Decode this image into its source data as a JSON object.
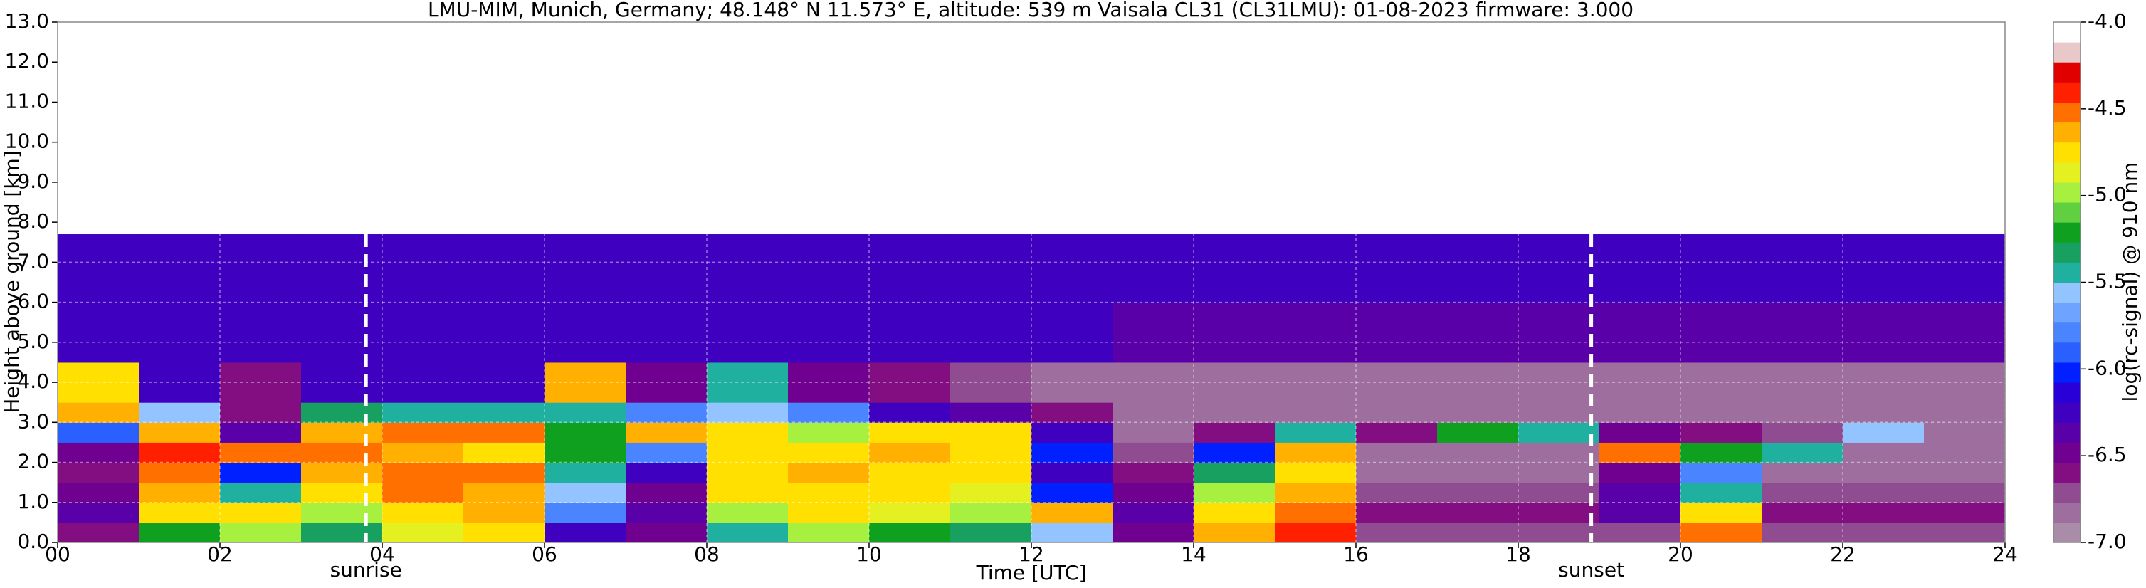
{
  "chart_data": {
    "type": "heatmap",
    "title": "LMU-MIM, Munich, Germany; 48.148° N 11.573° E, altitude: 539 m    Vaisala CL31 (CL31LMU): 01-08-2023    firmware: 3.000",
    "x_label": "Time [UTC]",
    "y_label": "Height above ground [km]",
    "colorbar_label": "log(rc-signal) @ 910 nm",
    "xlim": [
      0,
      24
    ],
    "ylim": [
      0,
      13
    ],
    "xticks": [
      {
        "value": 0,
        "label": "00"
      },
      {
        "value": 2,
        "label": "02"
      },
      {
        "value": 4,
        "label": "04"
      },
      {
        "value": 6,
        "label": "06"
      },
      {
        "value": 8,
        "label": "08"
      },
      {
        "value": 10,
        "label": "10"
      },
      {
        "value": 12,
        "label": "12"
      },
      {
        "value": 14,
        "label": "14"
      },
      {
        "value": 16,
        "label": "16"
      },
      {
        "value": 18,
        "label": "18"
      },
      {
        "value": 20,
        "label": "20"
      },
      {
        "value": 22,
        "label": "22"
      },
      {
        "value": 24,
        "label": "24"
      }
    ],
    "yticks": [
      {
        "value": 0,
        "label": "0.0"
      },
      {
        "value": 1,
        "label": "1.0"
      },
      {
        "value": 2,
        "label": "2.0"
      },
      {
        "value": 3,
        "label": "3.0"
      },
      {
        "value": 4,
        "label": "4.0"
      },
      {
        "value": 5,
        "label": "5.0"
      },
      {
        "value": 6,
        "label": "6.0"
      },
      {
        "value": 7,
        "label": "7.0"
      },
      {
        "value": 8,
        "label": "8.0"
      },
      {
        "value": 9,
        "label": "9.0"
      },
      {
        "value": 10,
        "label": "10.0"
      },
      {
        "value": 11,
        "label": "11.0"
      },
      {
        "value": 12,
        "label": "12.0"
      },
      {
        "value": 13,
        "label": "13.0"
      }
    ],
    "grid": true,
    "clim": [
      -7,
      -4
    ],
    "cticks": [
      {
        "value": -4,
        "label": "-4.0"
      },
      {
        "value": -4.5,
        "label": "-4.5"
      },
      {
        "value": -5,
        "label": "-5.0"
      },
      {
        "value": -5.5,
        "label": "-5.5"
      },
      {
        "value": -6,
        "label": "-6.0"
      },
      {
        "value": -6.5,
        "label": "-6.5"
      },
      {
        "value": -7,
        "label": "-7.0"
      }
    ],
    "colors": [
      "#a98ca8",
      "#9d6e9e",
      "#8f4c90",
      "#820e82",
      "#700090",
      "#5a00a8",
      "#4000c0",
      "#2a00d8",
      "#0020ff",
      "#2a60ff",
      "#4a84ff",
      "#6ea4ff",
      "#94c4ff",
      "#20b0a0",
      "#18a060",
      "#10a020",
      "#60d040",
      "#a8f040",
      "#e4f020",
      "#ffe000",
      "#ffb000",
      "#ff7000",
      "#ff2000",
      "#e00000",
      "#e8c8c8",
      "#ffffff"
    ],
    "xbins": [
      0,
      1,
      2,
      3,
      4,
      5,
      6,
      7,
      8,
      9,
      10,
      11,
      12,
      13,
      14,
      15,
      16,
      17,
      18,
      19,
      20,
      21,
      22,
      23,
      24
    ],
    "ybins": [
      0,
      0.5,
      1,
      1.5,
      2,
      2.5,
      3,
      3.5,
      4.5,
      6,
      7.7
    ],
    "z": [
      [
        -6.6,
        -5.2,
        -5.0,
        -5.3,
        -4.9,
        -4.8,
        -6.2,
        -6.5,
        -5.4,
        -5.0,
        -5.2,
        -5.3,
        -5.6,
        -6.5,
        -4.6,
        -4.4,
        -6.7,
        -6.7,
        -6.7,
        -6.7,
        -4.5,
        -6.7,
        -6.7,
        -6.7
      ],
      [
        -6.4,
        -4.8,
        -4.7,
        -5.0,
        -4.7,
        -4.6,
        -5.8,
        -6.4,
        -5.0,
        -4.8,
        -4.9,
        -5.0,
        -4.6,
        -6.4,
        -4.7,
        -4.5,
        -6.6,
        -6.6,
        -6.6,
        -6.4,
        -4.7,
        -6.6,
        -6.6,
        -6.6
      ],
      [
        -6.5,
        -4.6,
        -5.5,
        -4.8,
        -4.5,
        -4.6,
        -5.6,
        -6.5,
        -4.8,
        -4.7,
        -4.8,
        -4.9,
        -6.0,
        -6.5,
        -5.0,
        -4.6,
        -6.7,
        -6.7,
        -6.7,
        -6.4,
        -5.5,
        -6.7,
        -6.7,
        -6.7
      ],
      [
        -6.6,
        -4.5,
        -6.0,
        -4.6,
        -4.5,
        -4.5,
        -5.4,
        -6.2,
        -4.7,
        -4.6,
        -4.7,
        -4.8,
        -6.2,
        -6.6,
        -5.3,
        -4.7,
        -6.8,
        -6.8,
        -6.8,
        -6.5,
        -5.8,
        -6.8,
        -6.8,
        -6.8
      ],
      [
        -6.5,
        -4.4,
        -4.5,
        -4.5,
        -4.6,
        -4.7,
        -5.2,
        -5.8,
        -4.7,
        -4.7,
        -4.6,
        -4.7,
        -6.0,
        -6.7,
        -6.0,
        -4.6,
        -6.8,
        -6.8,
        -6.8,
        -4.5,
        -5.2,
        -5.4,
        -6.8,
        -6.8
      ],
      [
        -5.9,
        -4.6,
        -6.4,
        -4.6,
        -4.5,
        -4.5,
        -5.2,
        -4.6,
        -4.7,
        -5.0,
        -4.8,
        -4.8,
        -6.2,
        -6.8,
        -6.6,
        -5.5,
        -6.6,
        -5.2,
        -5.4,
        -6.5,
        -6.6,
        -6.7,
        -5.6,
        -6.8
      ],
      [
        -4.6,
        -5.6,
        -6.6,
        -5.3,
        -5.5,
        -5.5,
        -5.4,
        -5.8,
        -5.6,
        -5.8,
        -6.2,
        -6.4,
        -6.6,
        -6.8,
        -6.8,
        -6.8,
        -6.8,
        -6.8,
        -6.8,
        -6.8,
        -6.8,
        -6.8,
        -6.8,
        -6.8
      ],
      [
        -4.8,
        -6.3,
        -6.6,
        -6.3,
        -6.3,
        -6.3,
        -4.6,
        -6.5,
        -5.5,
        -6.5,
        -6.6,
        -6.7,
        -6.8,
        -6.8,
        -6.8,
        -6.8,
        -6.8,
        -6.8,
        -6.8,
        -6.8,
        -6.8,
        -6.8,
        -6.8,
        -6.8
      ],
      [
        -6.3,
        -6.3,
        -6.3,
        -6.3,
        -6.3,
        -6.3,
        -6.3,
        -6.3,
        -6.3,
        -6.3,
        -6.3,
        -6.3,
        -6.3,
        -6.4,
        -6.4,
        -6.4,
        -6.4,
        -6.4,
        -6.4,
        -6.4,
        -6.4,
        -6.4,
        -6.4,
        -6.4
      ],
      [
        -6.2,
        -6.2,
        -6.2,
        -6.2,
        -6.2,
        -6.2,
        -6.2,
        -6.2,
        -6.2,
        -6.2,
        -6.2,
        -6.2,
        -6.2,
        -6.3,
        -6.3,
        -6.3,
        -6.3,
        -6.3,
        -6.3,
        -6.3,
        -6.3,
        -6.3,
        -6.3,
        -6.3
      ]
    ],
    "annotations": [
      {
        "text": "sunrise",
        "x": 3.8
      },
      {
        "text": "sunset",
        "x": 18.9
      }
    ]
  }
}
